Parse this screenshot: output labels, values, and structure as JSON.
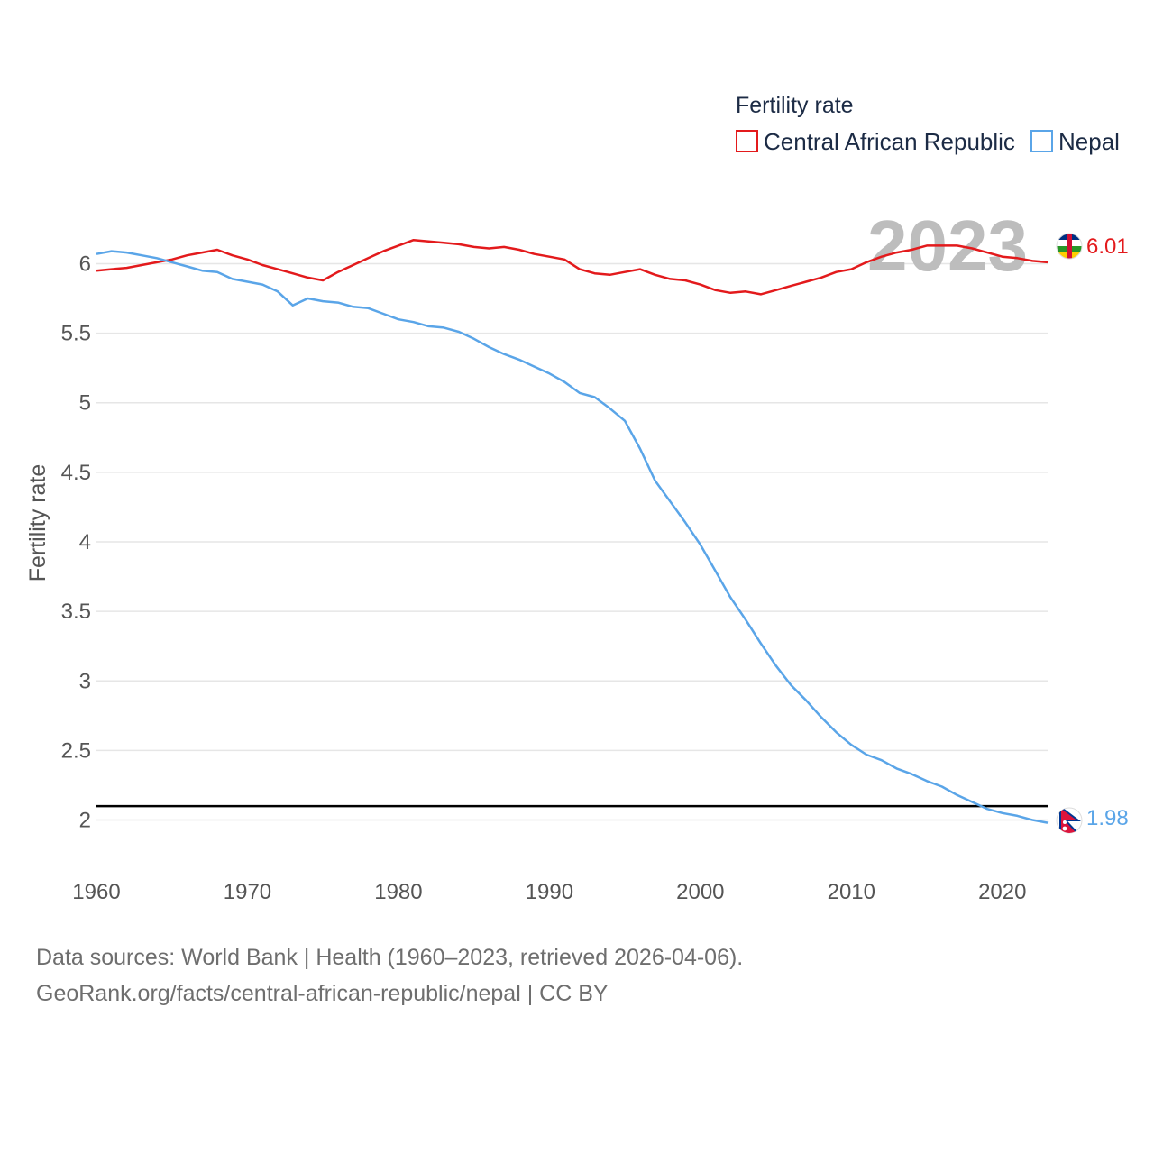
{
  "chart_data": {
    "type": "line",
    "title": "",
    "ylabel": "Fertility rate",
    "xlabel": "",
    "legend_title": "Fertility rate",
    "year_watermark": "2023",
    "xlim": [
      1960,
      2023
    ],
    "ylim": [
      1.77,
      6.34
    ],
    "x_ticks": [
      "1960",
      "1970",
      "1980",
      "1990",
      "2000",
      "2010",
      "2020"
    ],
    "y_ticks": [
      "2",
      "2.5",
      "3",
      "3.5",
      "4",
      "4.5",
      "5",
      "5.5",
      "6"
    ],
    "reference_line": {
      "y": 2.1,
      "color": "#000000"
    },
    "x": [
      1960,
      1961,
      1962,
      1963,
      1964,
      1965,
      1966,
      1967,
      1968,
      1969,
      1970,
      1971,
      1972,
      1973,
      1974,
      1975,
      1976,
      1977,
      1978,
      1979,
      1980,
      1981,
      1982,
      1983,
      1984,
      1985,
      1986,
      1987,
      1988,
      1989,
      1990,
      1991,
      1992,
      1993,
      1994,
      1995,
      1996,
      1997,
      1998,
      1999,
      2000,
      2001,
      2002,
      2003,
      2004,
      2005,
      2006,
      2007,
      2008,
      2009,
      2010,
      2011,
      2012,
      2013,
      2014,
      2015,
      2016,
      2017,
      2018,
      2019,
      2020,
      2021,
      2022,
      2023
    ],
    "series": [
      {
        "name": "Central African Republic",
        "color": "#e31a1c",
        "end_label": "6.01",
        "values": [
          5.95,
          5.96,
          5.97,
          5.99,
          6.01,
          6.03,
          6.06,
          6.08,
          6.1,
          6.06,
          6.03,
          5.99,
          5.96,
          5.93,
          5.9,
          5.88,
          5.94,
          5.99,
          6.04,
          6.09,
          6.13,
          6.17,
          6.16,
          6.15,
          6.14,
          6.12,
          6.11,
          6.12,
          6.1,
          6.07,
          6.05,
          6.03,
          5.96,
          5.93,
          5.92,
          5.94,
          5.96,
          5.92,
          5.89,
          5.88,
          5.85,
          5.81,
          5.79,
          5.8,
          5.78,
          5.81,
          5.84,
          5.87,
          5.9,
          5.94,
          5.96,
          6.01,
          6.05,
          6.08,
          6.1,
          6.13,
          6.13,
          6.13,
          6.11,
          6.08,
          6.05,
          6.04,
          6.02,
          6.01
        ]
      },
      {
        "name": "Nepal",
        "color": "#5aa5e8",
        "end_label": "1.98",
        "values": [
          6.07,
          6.09,
          6.08,
          6.06,
          6.04,
          6.01,
          5.98,
          5.95,
          5.94,
          5.89,
          5.87,
          5.85,
          5.8,
          5.7,
          5.75,
          5.73,
          5.72,
          5.69,
          5.68,
          5.64,
          5.6,
          5.58,
          5.55,
          5.54,
          5.51,
          5.46,
          5.4,
          5.35,
          5.31,
          5.26,
          5.21,
          5.15,
          5.07,
          5.04,
          4.96,
          4.87,
          4.67,
          4.44,
          4.29,
          4.14,
          3.98,
          3.79,
          3.6,
          3.44,
          3.27,
          3.11,
          2.97,
          2.86,
          2.74,
          2.63,
          2.54,
          2.47,
          2.43,
          2.37,
          2.33,
          2.28,
          2.24,
          2.18,
          2.13,
          2.08,
          2.05,
          2.03,
          2.0,
          1.98
        ]
      }
    ]
  },
  "footer": {
    "line1": "Data sources: World Bank | Health (1960–2023, retrieved 2026-04-06).",
    "line2": "GeoRank.org/facts/central-african-republic/nepal | CC BY"
  },
  "colors": {
    "flag_nepal": "#dc143c",
    "flag_car_blue": "#003082",
    "flag_car_green": "#289728",
    "flag_car_yellow": "#ffce00",
    "flag_car_red": "#d21034"
  },
  "icons": {
    "car_marker": "central-african-republic-flag-icon",
    "nepal_marker": "nepal-flag-icon"
  }
}
